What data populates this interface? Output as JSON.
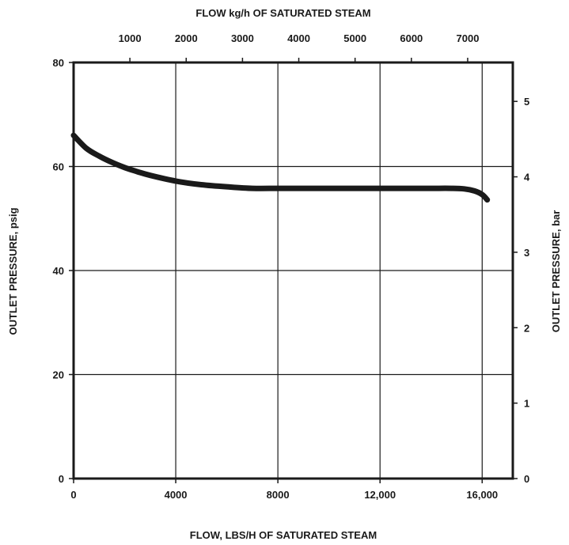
{
  "chart_data": {
    "type": "line",
    "title": "",
    "xlabel": "FLOW, LBS/H OF SATURATED STEAM",
    "ylabel": "OUTLET PRESSURE, psig",
    "secondary_xlabel": "FLOW kg/h OF SATURATED STEAM",
    "secondary_ylabel": "OUTLET PRESSURE, bar",
    "xlim": [
      0,
      17200
    ],
    "ylim": [
      0,
      80
    ],
    "grid": true,
    "x_ticks": [
      {
        "value": 0,
        "label": "0"
      },
      {
        "value": 4000,
        "label": "4000"
      },
      {
        "value": 8000,
        "label": "8000"
      },
      {
        "value": 12000,
        "label": "12,000"
      },
      {
        "value": 16000,
        "label": "16,000"
      }
    ],
    "y_ticks": [
      {
        "value": 0,
        "label": "0"
      },
      {
        "value": 20,
        "label": "20"
      },
      {
        "value": 40,
        "label": "40"
      },
      {
        "value": 60,
        "label": "60"
      },
      {
        "value": 80,
        "label": "80"
      }
    ],
    "top_ticks": [
      {
        "value": 1000,
        "label": "1000"
      },
      {
        "value": 2000,
        "label": "2000"
      },
      {
        "value": 3000,
        "label": "3000"
      },
      {
        "value": 4000,
        "label": "4000"
      },
      {
        "value": 5000,
        "label": "5000"
      },
      {
        "value": 6000,
        "label": "6000"
      },
      {
        "value": 7000,
        "label": "7000"
      }
    ],
    "right_ticks": [
      {
        "value": 0,
        "label": "0"
      },
      {
        "value": 1,
        "label": "1"
      },
      {
        "value": 2,
        "label": "2"
      },
      {
        "value": 3,
        "label": "3"
      },
      {
        "value": 4,
        "label": "4"
      },
      {
        "value": 5,
        "label": "5"
      }
    ],
    "series": [
      {
        "x": [
          0,
          500,
          1000,
          1500,
          2000,
          2500,
          3000,
          4000,
          5000,
          6000,
          7000,
          8000,
          9000,
          10000,
          11000,
          12000,
          13000,
          14000,
          14800,
          15300,
          15700,
          16000,
          16200
        ],
        "y": [
          66,
          63.5,
          62,
          60.8,
          59.8,
          59,
          58.3,
          57.2,
          56.5,
          56.1,
          55.8,
          55.8,
          55.8,
          55.8,
          55.8,
          55.8,
          55.8,
          55.8,
          55.8,
          55.7,
          55.3,
          54.6,
          53.6
        ]
      }
    ]
  }
}
